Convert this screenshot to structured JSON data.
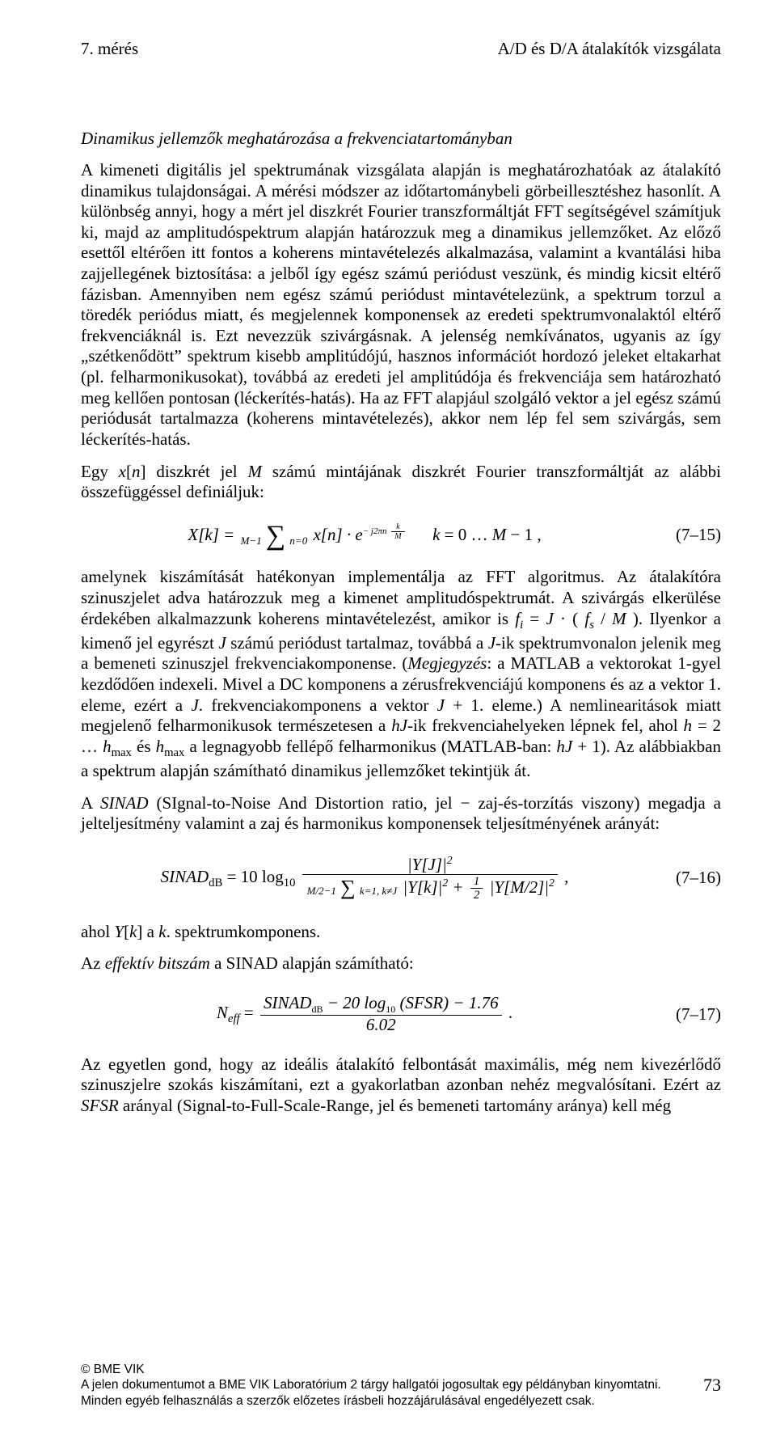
{
  "header": {
    "left": "7. mérés",
    "right": "A/D és D/A átalakítók vizsgálata"
  },
  "section_title": "Dinamikus jellemzők meghatározása a frekvenciatartományban",
  "para1": "A kimeneti digitális jel spektrumának vizsgálata alapján is meghatározhatóak az átalakító dinamikus tulajdonságai. A mérési módszer az időtartománybeli görbeillesztéshez hasonlít. A különbség annyi, hogy a mért jel diszkrét Fourier transzformáltját FFT segítségével számítjuk ki, majd az amplitudóspektrum alapján határozzuk meg a dinamikus jellemzőket. Az előző esettől eltérően itt fontos a koherens mintavételezés alkalmazása, valamint a kvantálási hiba zajjellegének biztosítása: a jelből így egész számú periódust veszünk, és mindig kicsit eltérő fázisban. Amennyiben nem egész számú periódust mintavételezünk, a spektrum torzul a töredék periódus miatt, és megjelennek komponensek az eredeti spektrumvonalaktól eltérő frekvenciáknál is. Ezt nevezzük szivárgásnak. A jelenség nemkívánatos, ugyanis az így „szétkenődött” spektrum kisebb amplitúdójú, hasznos információt hordozó jeleket eltakarhat (pl. felharmonikusokat), továbbá az eredeti jel amplitúdója és frekvenciája sem határozható meg kellően pontosan (léckerítés-hatás). Ha az FFT alapjául szolgáló vektor a jel egész számú periódusát tartalmazza (koherens mintavételezés), akkor nem lép fel sem szivárgás, sem léckerítés-hatás.",
  "para2_pre": "Egy ",
  "para2_mid": " diszkrét jel ",
  "para2_post": " számú mintájának diszkrét Fourier transzformáltját az alábbi összefüggéssel definiáljuk:",
  "eq15": {
    "lhs": "X[k] = ",
    "sum_top": "M−1",
    "sum_bot": "n=0",
    "body": "x[n] · e",
    "exp_num": "k",
    "exp_den": "M",
    "exp_pre": "− j 2πn",
    "range": "k = 0 … M − 1 ,",
    "num": "(7–15)"
  },
  "para3a": "amelynek kiszámítását hatékonyan implementálja az FFT algoritmus. Az átalakítóra szinuszjelet adva határozzuk meg a kimenet amplitudóspektrumát. A szivárgás elkerülése érdekében alkalmazzunk koherens mintavételezést, amikor is ",
  "para3a_formula": "fᵢ = J · ( fₛ / M )",
  "para3a_tail": ". Ilyenkor a",
  "para3b": "kimenő jel egyrészt J számú periódust tartalmaz, továbbá a J-ik spektrumvonalon jelenik meg a bemeneti szinuszjel frekvenciakomponense. (Megjegyzés: a MATLAB a vektorokat 1-gyel kezdődően indexeli. Mivel a DC komponens a zérusfrekvenciájú komponens és az a vektor 1. eleme, ezért a J. frekvenciakomponens a vektor J + 1. eleme.) A nemlinearitások miatt megjelenő felharmonikusok természetesen a hJ-ik frekvenciahelyeken lépnek fel, ahol h = 2 … hₘₐₓ és hₘₐₓ a legnagyobb fellépő felharmonikus (MATLAB-ban: hJ + 1). Az alábbiakban a spektrum alapján számítható dinamikus jellemzőket tekintjük át.",
  "para4": "A SINAD (SIgnal-to-Noise And Distortion ratio, jel − zaj-és-torzítás viszony) megadja a jelteljesítmény valamint a zaj és harmonikus komponensek teljesítményének arányát:",
  "eq16": {
    "lhs": "SINAD",
    "lhs_sub": "dB",
    "eq": " = 10 log",
    "log_sub": "10",
    "num_top": "|Y[J]|²",
    "den_sum_top": "M/2−1",
    "den_sum_bot": "k=1, k≠J",
    "den_term1": "|Y[k]|²",
    "den_plus": " + ",
    "den_half_n": "1",
    "den_half_d": "2",
    "den_term2": "|Y[M/2]|²",
    "tail": " ,",
    "num": "(7–16)"
  },
  "para5_pre": "ahol ",
  "para5_yk": "Y[k]",
  "para5_mid": " a ",
  "para5_k": "k.",
  "para5_post": " spektrumkomponens.",
  "para6": "Az effektív bitszám a SINAD alapján számítható:",
  "eq17": {
    "lhs": "N",
    "lhs_sub": "eff",
    "eq": " = ",
    "top": "SINADᵈᴮ − 20 log₁₀ (SFSR) − 1.76",
    "top_a": "SINAD",
    "top_a_sub": "dB",
    "top_b": " − 20 log",
    "top_b_sub": "10",
    "top_c": " (SFSR) − 1.76",
    "bot": "6.02",
    "tail": " .",
    "num": "(7–17)"
  },
  "para7": "Az egyetlen gond, hogy az ideális átalakító felbontását maximális, még nem kivezérlődő szinuszjelre szokás kiszámítani, ezt a gyakorlatban azonban nehéz megvalósítani. Ezért az SFSR arányal (Signal-to-Full-Scale-Range, jel és bemeneti tartomány aránya) kell még",
  "footer": {
    "l1": "© BME VIK",
    "l2": "A jelen dokumentumot a BME VIK Laboratórium 2 tárgy hallgatói jogosultak egy példányban kinyomtatni.",
    "l3": "Minden egyéb felhasználás a szerzők előzetes írásbeli hozzájárulásával engedélyezett csak.",
    "page": "73"
  }
}
